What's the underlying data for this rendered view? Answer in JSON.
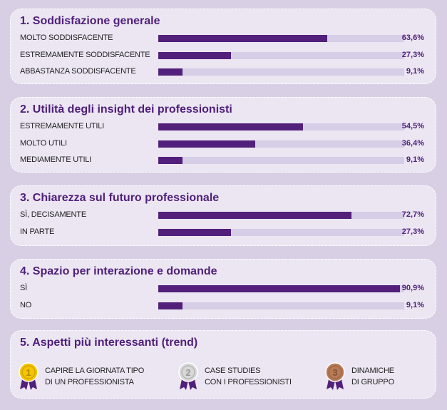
{
  "colors": {
    "bar": "#52207a",
    "track": "#d6cde6",
    "title": "#4f1f7a",
    "gold": "#f5c400",
    "silver": "#d8d8d8",
    "bronze": "#b87a55",
    "ribbon": "#52207a"
  },
  "chart_data": [
    {
      "type": "bar",
      "title": "1. Soddisfazione generale",
      "categories": [
        "MOLTO SODDISFACENTE",
        "ESTREMAMENTE SODDISFACENTE",
        "ABBASTANZA SODDISFACENTE"
      ],
      "values": [
        63.6,
        27.3,
        9.1
      ],
      "labels": [
        "63,6%",
        "27,3%",
        "9,1%"
      ],
      "xlim": [
        0,
        100
      ]
    },
    {
      "type": "bar",
      "title": "2. Utilità degli insight dei professionisti",
      "categories": [
        "ESTREMAMENTE UTILI",
        "MOLTO UTILI",
        "MEDIAMENTE UTILI"
      ],
      "values": [
        54.5,
        36.4,
        9.1
      ],
      "labels": [
        "54,5%",
        "36,4%",
        "9,1%"
      ],
      "xlim": [
        0,
        100
      ]
    },
    {
      "type": "bar",
      "title": "3. Chiarezza sul futuro professionale",
      "categories": [
        "SÌ, DECISAMENTE",
        "IN PARTE"
      ],
      "values": [
        72.7,
        27.3
      ],
      "labels": [
        "72,7%",
        "27,3%"
      ],
      "xlim": [
        0,
        100
      ]
    },
    {
      "type": "bar",
      "title": "4. Spazio per interazione e domande",
      "categories": [
        "SÌ",
        "NO"
      ],
      "values": [
        90.9,
        9.1
      ],
      "labels": [
        "90,9%",
        "9,1%"
      ],
      "xlim": [
        0,
        100
      ]
    }
  ],
  "trends": {
    "title": "5. Aspetti più interessanti (trend)",
    "items": [
      {
        "rank": "1",
        "icon": "gold-medal-icon",
        "line1": "CAPIRE LA GIORNATA TIPO",
        "line2": "DI UN PROFESSIONISTA"
      },
      {
        "rank": "2",
        "icon": "silver-medal-icon",
        "line1": "CASE STUDIES",
        "line2": "CON I PROFESSIONISTI"
      },
      {
        "rank": "3",
        "icon": "bronze-medal-icon",
        "line1": "DINAMICHE",
        "line2": "DI GRUPPO"
      }
    ]
  }
}
